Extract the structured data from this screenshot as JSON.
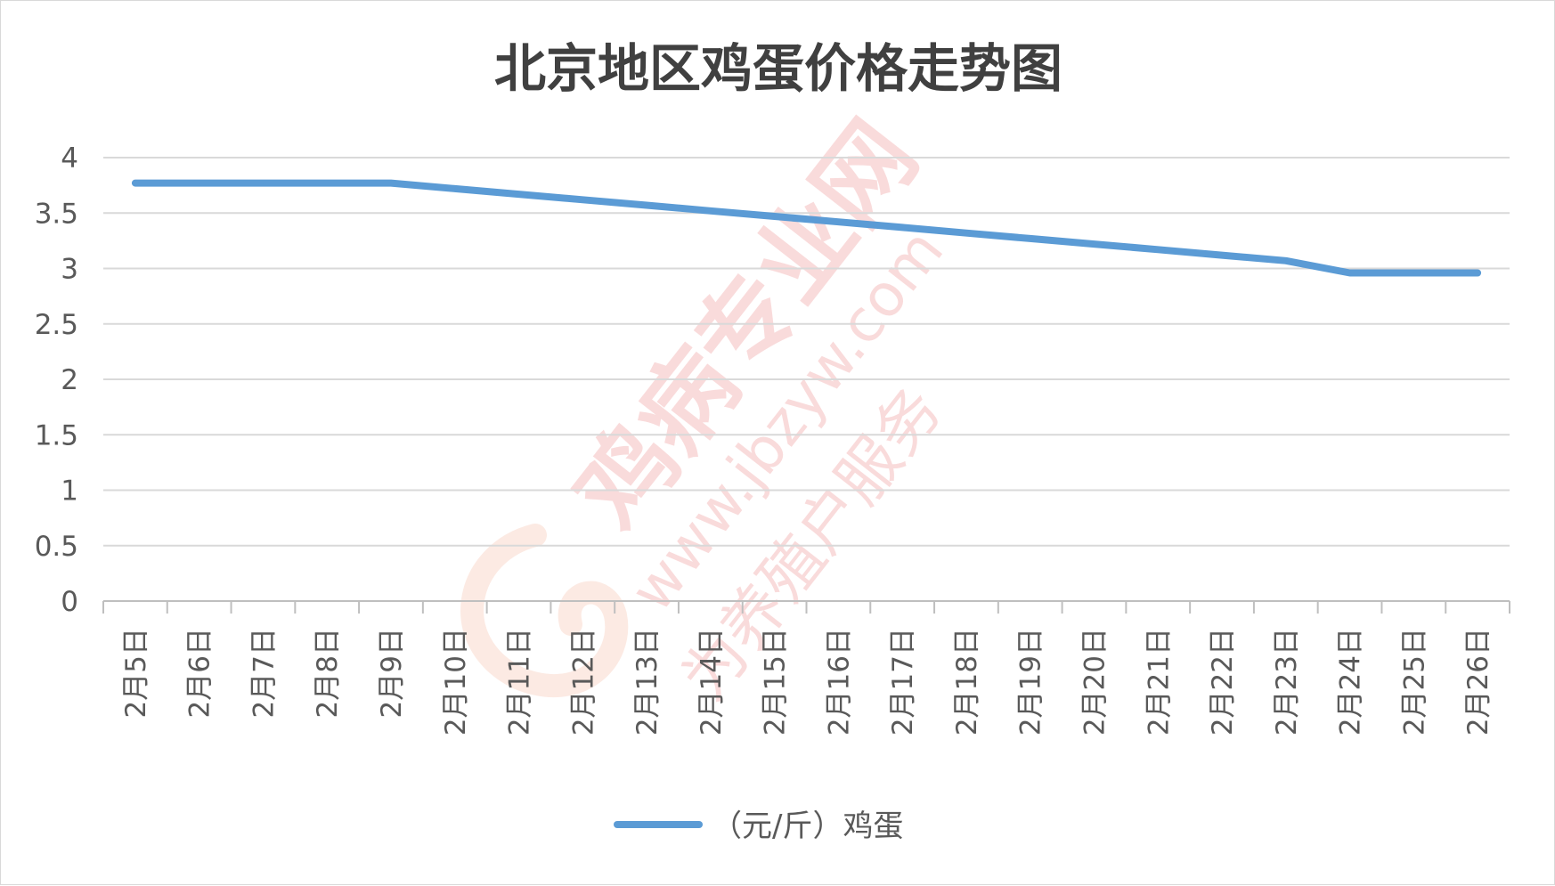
{
  "chart_data": {
    "type": "line",
    "title": "北京地区鸡蛋价格走势图",
    "xlabel": "",
    "ylabel": "",
    "ylim": [
      0,
      4
    ],
    "yticks": [
      "0",
      "0.5",
      "1",
      "1.5",
      "2",
      "2.5",
      "3",
      "3.5",
      "4"
    ],
    "grid": true,
    "legend_position": "bottom",
    "categories": [
      "2月5日",
      "2月6日",
      "2月7日",
      "2月8日",
      "2月9日",
      "2月10日",
      "2月11日",
      "2月12日",
      "2月13日",
      "2月14日",
      "2月15日",
      "2月16日",
      "2月17日",
      "2月18日",
      "2月19日",
      "2月20日",
      "2月21日",
      "2月22日",
      "2月23日",
      "2月24日",
      "2月25日",
      "2月26日"
    ],
    "series": [
      {
        "name": "（元/斤）鸡蛋",
        "color": "#5b9bd5",
        "values": [
          3.77,
          3.77,
          3.77,
          3.77,
          3.77,
          3.72,
          3.67,
          3.62,
          3.57,
          3.52,
          3.47,
          3.42,
          3.37,
          3.32,
          3.27,
          3.22,
          3.17,
          3.12,
          3.07,
          2.96,
          2.96,
          2.96
        ]
      }
    ]
  },
  "watermark": {
    "text": "鸡病专业网",
    "url": "www.jbzyw.com",
    "tagline": "为养殖户服务",
    "color": "#f3b1b1"
  }
}
